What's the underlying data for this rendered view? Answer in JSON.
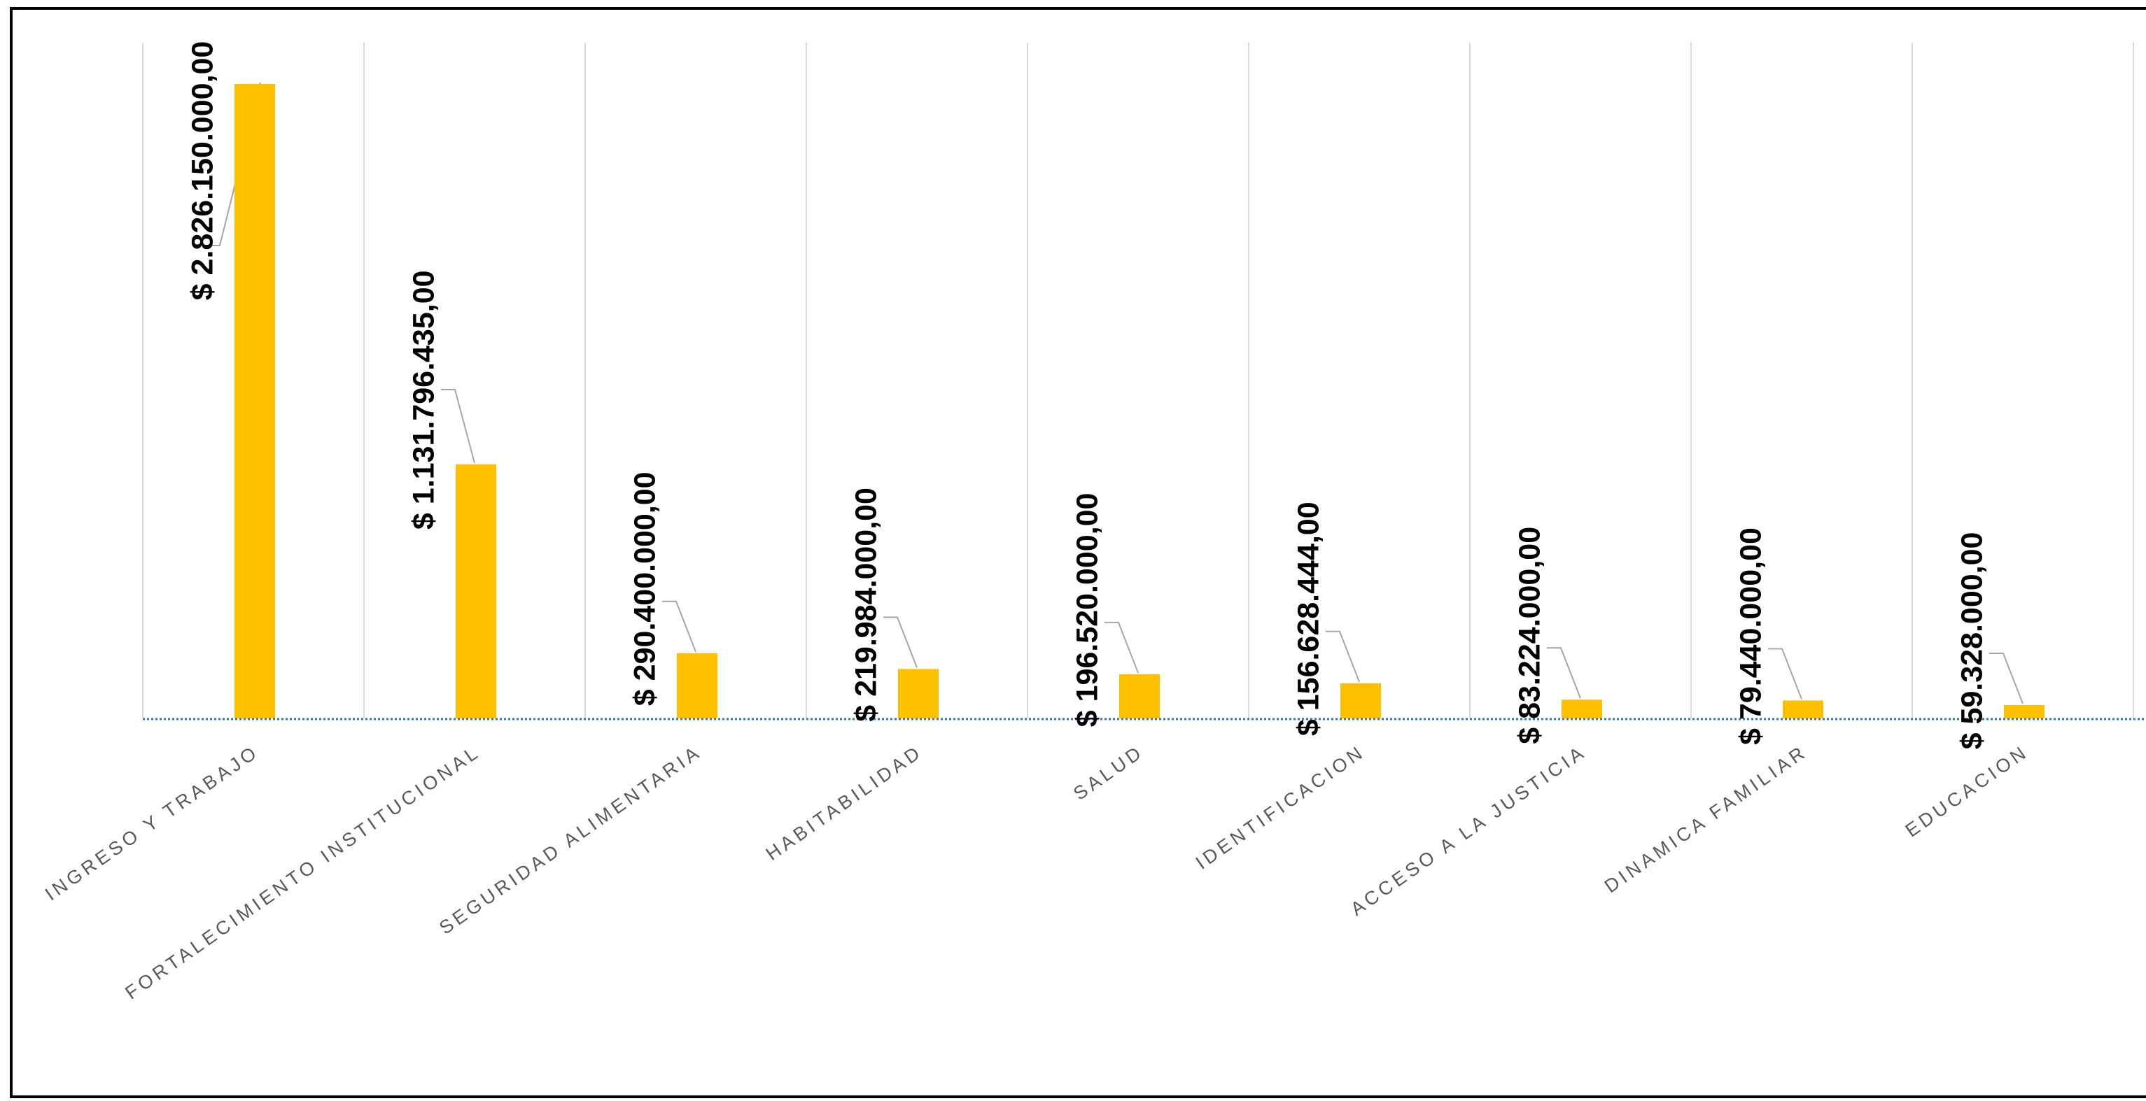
{
  "chart_data": {
    "type": "bar",
    "title": "",
    "xlabel": "",
    "ylabel": "",
    "categories": [
      "INGRESO Y TRABAJO",
      "FORTALECIMIENTO INSTITUCIONAL",
      "SEGURIDAD ALIMENTARIA",
      "HABITABILIDAD",
      "SALUD",
      "IDENTIFICACION",
      "ACCESO A LA JUSTICIA",
      "DINAMICA FAMILIAR",
      "EDUCACION"
    ],
    "values": [
      2826150000,
      1131796435,
      290400000,
      219984000,
      196520000,
      156628444,
      83224000,
      79440000,
      59328000
    ],
    "value_labels": [
      "$ 2.826.150.000,00",
      "$ 1.131.796.435,00",
      "$ 290.400.000,00",
      "$ 219.984.000,00",
      "$ 196.520.000,00",
      "$ 156.628.444,00",
      "$ 83.224.000,00",
      "$ 79.440.000,00",
      "$ 59.328.000,00"
    ],
    "ylim": [
      0,
      2826150000
    ],
    "grid": true,
    "legend": "none",
    "colors": {
      "bar": "#FFC000",
      "gridline": "#D9D9D9",
      "baseline": "#2E75B6",
      "leader": "#A6A6A6",
      "category_text": "#595959",
      "value_text": "#000000",
      "frame": "#000000"
    }
  }
}
